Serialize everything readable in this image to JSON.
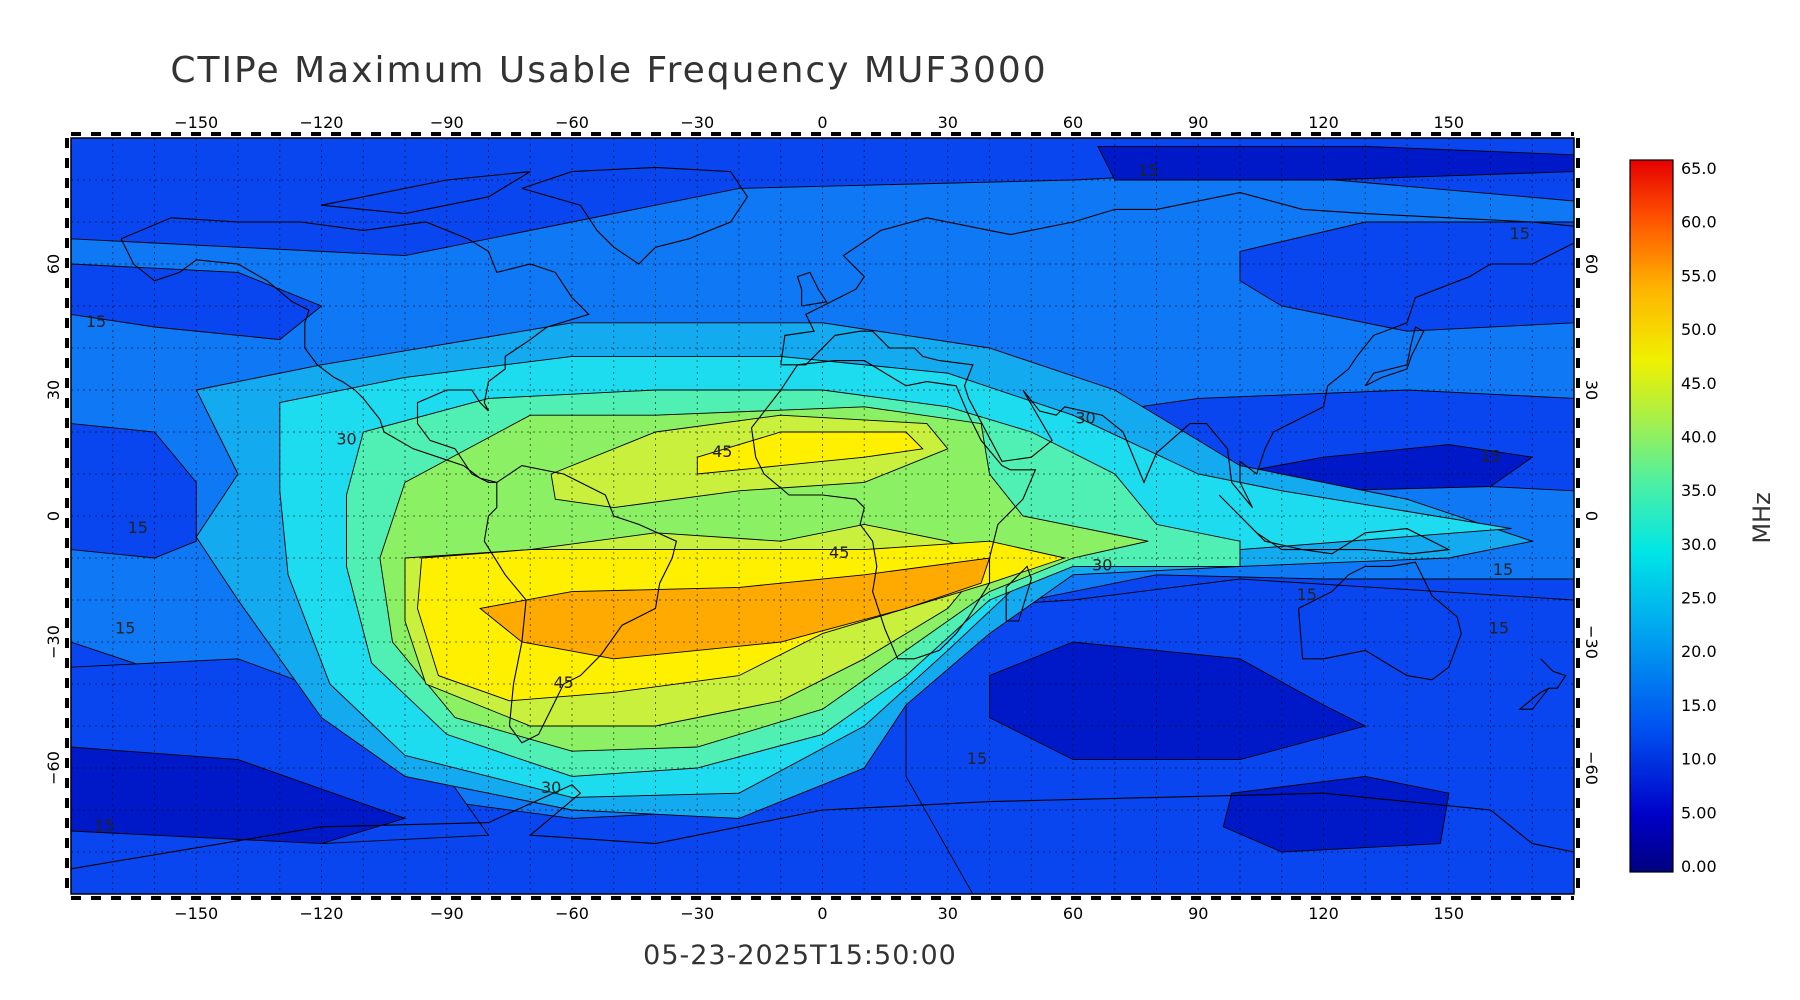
{
  "title": "CTIPe Maximum Usable Frequency MUF3000",
  "timestamp": "05-23-2025T15:50:00",
  "map": {
    "lon_ticks": [
      -150,
      -120,
      -90,
      -60,
      -30,
      0,
      30,
      60,
      90,
      120,
      150
    ],
    "lat_ticks": [
      60,
      30,
      0,
      -30,
      -60
    ],
    "lon_range": [
      -180,
      180
    ],
    "lat_range": [
      -90,
      90
    ],
    "grid": true,
    "coastlines": true
  },
  "contour_labels": [
    {
      "text": "15",
      "lon": 78,
      "lat": 81
    },
    {
      "text": "15",
      "lon": 167,
      "lat": 66
    },
    {
      "text": "15",
      "lon": -174,
      "lat": 45
    },
    {
      "text": "15",
      "lon": 160,
      "lat": 13
    },
    {
      "text": "15",
      "lon": -164,
      "lat": -4
    },
    {
      "text": "15",
      "lon": 163,
      "lat": -14
    },
    {
      "text": "15",
      "lon": 116,
      "lat": -20
    },
    {
      "text": "15",
      "lon": 162,
      "lat": -28
    },
    {
      "text": "15",
      "lon": -167,
      "lat": -28
    },
    {
      "text": "15",
      "lon": 37,
      "lat": -59
    },
    {
      "text": "15",
      "lon": -172,
      "lat": -75
    },
    {
      "text": "30",
      "lon": 63,
      "lat": 22
    },
    {
      "text": "30",
      "lon": -114,
      "lat": 17
    },
    {
      "text": "30",
      "lon": 67,
      "lat": -13
    },
    {
      "text": "30",
      "lon": -65,
      "lat": -66
    },
    {
      "text": "45",
      "lon": -24,
      "lat": 14
    },
    {
      "text": "45",
      "lon": 4,
      "lat": -10
    },
    {
      "text": "45",
      "lon": -62,
      "lat": -41
    }
  ],
  "colorbar": {
    "unit": "MHz",
    "labels": [
      "65.0",
      "60.0",
      "55.0",
      "50.0",
      "45.0",
      "40.0",
      "35.0",
      "30.0",
      "25.0",
      "20.0",
      "15.0",
      "10.0",
      "5.00",
      "0.00"
    ]
  },
  "colors": {
    "level_0": "#0d0d8c",
    "level_5": "#0019c8",
    "level_10": "#0a46f0",
    "level_15": "#0f78f5",
    "level_20": "#14aaf0",
    "level_25": "#1edcf0",
    "level_30": "#50f0b4",
    "level_35": "#8cf064",
    "level_40": "#c8f03c",
    "level_45": "#fff000",
    "level_50": "#ffaa00",
    "level_55": "#ff6e00",
    "level_60": "#ff2800",
    "level_65": "#e60000"
  }
}
